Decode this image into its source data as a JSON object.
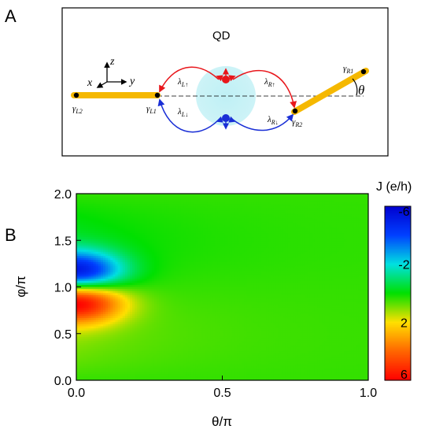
{
  "panel_a": {
    "label": "A",
    "qd_label": "QD",
    "axes": {
      "x": "x",
      "y": "y",
      "z": "z"
    },
    "angle_symbol": "θ",
    "gamma": {
      "L2": {
        "sym": "γ",
        "sub": "L2"
      },
      "L1": {
        "sym": "γ",
        "sub": "L1"
      },
      "R1": {
        "sym": "γ",
        "sub": "R1"
      },
      "R2": {
        "sym": "γ",
        "sub": "R2"
      }
    },
    "lambda": {
      "L_up": {
        "sym": "λ",
        "sub": "L↑"
      },
      "R_up": {
        "sym": "λ",
        "sub": "R↑"
      },
      "L_down": {
        "sym": "λ",
        "sub": "L↓"
      },
      "R_down": {
        "sym": "λ",
        "sub": "R↓"
      }
    },
    "colors": {
      "wire": "#f5b800",
      "dot_cloud": "#bff0f5",
      "up": "#e8161b",
      "down": "#1a2fd6"
    }
  },
  "panel_b": {
    "label": "B",
    "chart_data": {
      "type": "heatmap",
      "xlabel": "θ/π",
      "ylabel": "φ/π",
      "xlim": [
        0.0,
        1.0
      ],
      "ylim": [
        0.0,
        2.0
      ],
      "x_ticks": [
        "0.0",
        "0.5",
        "1.0"
      ],
      "y_ticks": [
        "0.0",
        "0.5",
        "1.0",
        "1.5",
        "2.0"
      ],
      "colorbar": {
        "title": "J (e/h)",
        "range": [
          -6,
          6
        ],
        "ticks": [
          "-6",
          "-2",
          "2",
          "6"
        ],
        "colormap": [
          "#ff0000",
          "#ff6600",
          "#ffe000",
          "#00e000",
          "#00e0e0",
          "#0040ff",
          "#0000d0"
        ]
      },
      "features": [
        {
          "name": "positive lobe",
          "peak_theta": 0.0,
          "peak_phi": 0.85,
          "peak_J": 6
        },
        {
          "name": "negative lobe",
          "peak_theta": 0.0,
          "peak_phi": 1.15,
          "peak_J": -6
        }
      ],
      "background_J": 0.4
    }
  }
}
